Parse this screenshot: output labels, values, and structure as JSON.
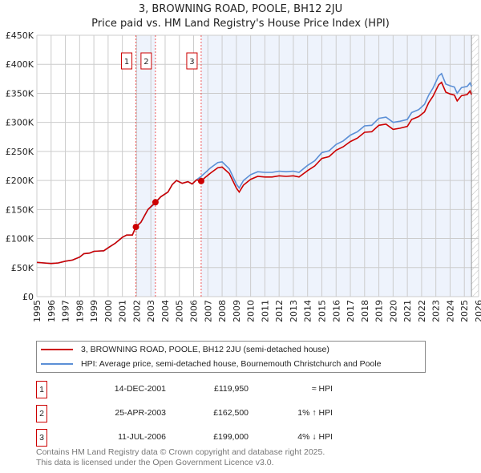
{
  "chart_data": {
    "type": "line",
    "title": "3, BROWNING ROAD, POOLE, BH12 2JU",
    "subtitle": "Price paid vs. HM Land Registry's House Price Index (HPI)",
    "xlim": [
      1995,
      2026
    ],
    "ylim": [
      0,
      450000
    ],
    "y_ticks": [
      {
        "v": 0,
        "label": "£0"
      },
      {
        "v": 50000,
        "label": "£50K"
      },
      {
        "v": 100000,
        "label": "£100K"
      },
      {
        "v": 150000,
        "label": "£150K"
      },
      {
        "v": 200000,
        "label": "£200K"
      },
      {
        "v": 250000,
        "label": "£250K"
      },
      {
        "v": 300000,
        "label": "£300K"
      },
      {
        "v": 350000,
        "label": "£350K"
      },
      {
        "v": 400000,
        "label": "£400K"
      },
      {
        "v": 450000,
        "label": "£450K"
      }
    ],
    "x_ticks": [
      "1995",
      "1996",
      "1997",
      "1998",
      "1999",
      "2000",
      "2001",
      "2002",
      "2003",
      "2004",
      "2005",
      "2006",
      "2007",
      "2008",
      "2009",
      "2010",
      "2011",
      "2012",
      "2013",
      "2014",
      "2015",
      "2016",
      "2017",
      "2018",
      "2019",
      "2020",
      "2021",
      "2022",
      "2023",
      "2024",
      "2025",
      "2026"
    ],
    "grid": true,
    "colors": {
      "property": "#cc0000",
      "hpi": "#5b8fd6",
      "shade": "#eef3fc"
    },
    "x": [
      1995,
      1995.5,
      1996,
      1996.5,
      1997,
      1997.5,
      1998,
      1998.3,
      1998.7,
      1999,
      1999.7,
      2000,
      2000.5,
      2001,
      2001.3,
      2001.7,
      2001.95,
      2002.3,
      2002.8,
      2003.32,
      2003.7,
      2004.2,
      2004.5,
      2004.8,
      2005.2,
      2005.6,
      2005.9,
      2006.2,
      2006.53,
      2006.8,
      2007.2,
      2007.7,
      2008,
      2008.5,
      2009,
      2009.2,
      2009.5,
      2010,
      2010.5,
      2011,
      2011.5,
      2012,
      2012.5,
      2013,
      2013.4,
      2014,
      2014.5,
      2015,
      2015.5,
      2016,
      2016.5,
      2017,
      2017.5,
      2018,
      2018.5,
      2019,
      2019.5,
      2020,
      2020.5,
      2021,
      2021.3,
      2021.8,
      2022.2,
      2022.5,
      2022.8,
      2023.2,
      2023.4,
      2023.7,
      2024,
      2024.3,
      2024.5,
      2024.8,
      2025.2,
      2025.4,
      2025.5
    ],
    "series": [
      {
        "name": "3, BROWNING ROAD, POOLE, BH12 2JU (semi-detached house)",
        "values": [
          59,
          58,
          57,
          58,
          61,
          63,
          68,
          74,
          75,
          78,
          79,
          84,
          92,
          102,
          106,
          106,
          120,
          128,
          150,
          162.5,
          172,
          180,
          193,
          200,
          195,
          198,
          194,
          201,
          199,
          205,
          213,
          222,
          223,
          212,
          187,
          180,
          192,
          202,
          207,
          206,
          206,
          208,
          207,
          208,
          206,
          217,
          225,
          238,
          241,
          252,
          258,
          267,
          273,
          283,
          284,
          295,
          297,
          288,
          290,
          293,
          305,
          310,
          318,
          334,
          345,
          365,
          369,
          352,
          349,
          347,
          337,
          346,
          348,
          354,
          348
        ]
      },
      {
        "name": "HPI: Average price, semi-detached house, Bournemouth Christchurch and Poole",
        "values": [
          59,
          58,
          57,
          58,
          61,
          63,
          68,
          74,
          75,
          78,
          79,
          84,
          92,
          102,
          106,
          106,
          120,
          128,
          150,
          161,
          172,
          180,
          193,
          200,
          195,
          198,
          194,
          201,
          207,
          213,
          222,
          231,
          232,
          220,
          194,
          187,
          200,
          210,
          215,
          214,
          214,
          216,
          215,
          216,
          214,
          226,
          234,
          248,
          251,
          262,
          268,
          278,
          284,
          294,
          295,
          307,
          309,
          300,
          302,
          305,
          317,
          322,
          331,
          347,
          359,
          380,
          384,
          366,
          363,
          361,
          350,
          360,
          362,
          368,
          362
        ]
      }
    ],
    "value_unit": "thousand GBP",
    "sales": [
      {
        "id": "1",
        "x": 2001.95,
        "date": "14-DEC-2001",
        "price": "£119,950",
        "value": 119.95,
        "hpi_rel": "≈ HPI"
      },
      {
        "id": "2",
        "x": 2003.32,
        "date": "25-APR-2003",
        "price": "£162,500",
        "value": 162.5,
        "hpi_rel": "1% ↑ HPI"
      },
      {
        "id": "3",
        "x": 2006.53,
        "date": "11-JUL-2006",
        "price": "£199,000",
        "value": 199,
        "hpi_rel": "4% ↓ HPI"
      }
    ],
    "forecast_start": 2025.5,
    "legend": {
      "position": "below",
      "items": [
        "3, BROWNING ROAD, POOLE, BH12 2JU (semi-detached house)",
        "HPI: Average price, semi-detached house, Bournemouth Christchurch and Poole"
      ]
    }
  },
  "footer": {
    "line1": "Contains HM Land Registry data © Crown copyright and database right 2025.",
    "line2": "This data is licensed under the Open Government Licence v3.0."
  }
}
